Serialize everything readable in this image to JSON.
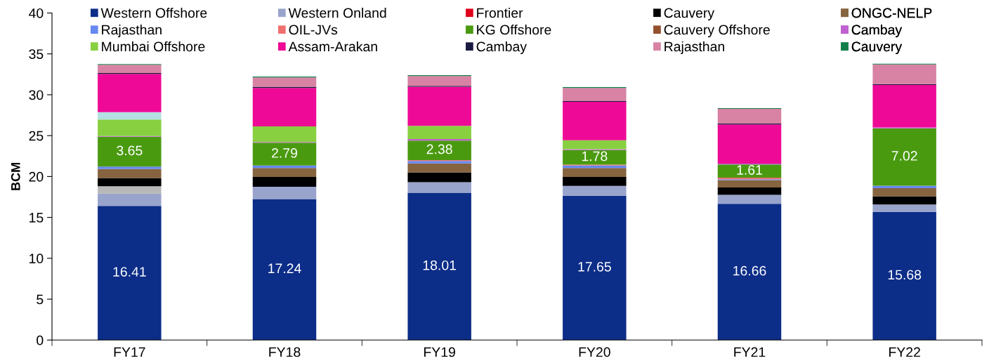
{
  "chart_data": {
    "type": "bar",
    "stacked": true,
    "ylabel": "BCM",
    "legend": "top",
    "categories": [
      "FY17",
      "FY18",
      "FY19",
      "FY20",
      "FY21",
      "FY22"
    ],
    "ylim": [
      0,
      40
    ],
    "yticks": [
      0,
      5,
      10,
      15,
      20,
      25,
      30,
      35,
      40
    ],
    "series": [
      {
        "name": "Western Offshore",
        "color": "#0c2d88",
        "values": [
          16.41,
          17.24,
          18.01,
          17.65,
          16.66,
          15.68
        ],
        "value_labels": [
          "16.41",
          "17.24",
          "18.01",
          "17.65",
          "16.66",
          "15.68"
        ]
      },
      {
        "name": "Western Onland",
        "color": "#98a4cc",
        "values": [
          1.5,
          1.5,
          1.3,
          1.2,
          1.1,
          0.9
        ]
      },
      {
        "name": "Frontier",
        "color": "#e0001a",
        "values": [
          null,
          null,
          null,
          null,
          null,
          null
        ]
      },
      {
        "color": "#b8b8b8",
        "values": [
          0.9,
          null,
          null,
          null,
          null,
          null
        ]
      },
      {
        "name": "Cauvery",
        "color": "#000000",
        "values": [
          1.0,
          1.2,
          1.2,
          1.1,
          0.9,
          1.0
        ]
      },
      {
        "name": "ONGC-NELP",
        "color": "#86643f",
        "values": [
          1.1,
          1.1,
          1.1,
          1.1,
          0.9,
          1.0
        ]
      },
      {
        "name": "Rajasthan",
        "color": "#6688f0",
        "values": [
          0.3,
          0.3,
          0.3,
          0.3,
          0.1,
          0.3
        ]
      },
      {
        "name": "OIL-JVs",
        "color": "#f07070",
        "values": [
          null,
          null,
          0.1,
          0.1,
          0.2,
          null
        ]
      },
      {
        "name": "KG Offshore",
        "color": "#4a9a10",
        "values": [
          3.65,
          2.79,
          2.38,
          1.78,
          1.61,
          7.02
        ],
        "value_labels": [
          "3.65",
          "2.79",
          "2.38",
          "1.78",
          "1.61",
          "7.02"
        ]
      },
      {
        "name": "Cauvery Offshore",
        "color": "#94502e",
        "values": [
          null,
          null,
          null,
          null,
          null,
          null
        ]
      },
      {
        "name": "Cambay",
        "color": "#c060d0",
        "values": [
          0.1,
          0.1,
          0.2,
          0.1,
          0.1,
          0.1
        ]
      },
      {
        "name": "Mumbai Offshore",
        "color": "#88d040",
        "values": [
          2.0,
          1.9,
          1.6,
          1.1,
          null,
          null
        ]
      },
      {
        "color": "#b4e0e4",
        "values": [
          0.9,
          null,
          null,
          null,
          null,
          null
        ]
      },
      {
        "name": "Assam-Arakan",
        "color": "#ee0a96",
        "values": [
          4.7,
          4.7,
          4.8,
          4.7,
          4.8,
          5.2
        ]
      },
      {
        "name": "Cambay",
        "color": "#1a1a40",
        "values": [
          0.1,
          0.1,
          0.1,
          0.1,
          0.1,
          0.1
        ]
      },
      {
        "name": "Rajasthan",
        "color": "#d882a4",
        "values": [
          1.0,
          1.2,
          1.2,
          1.6,
          1.8,
          2.4
        ]
      },
      {
        "name": "Cauvery",
        "color": "#10804a",
        "values": [
          0.1,
          0.1,
          0.1,
          0.1,
          0.1,
          0.1
        ]
      }
    ]
  }
}
